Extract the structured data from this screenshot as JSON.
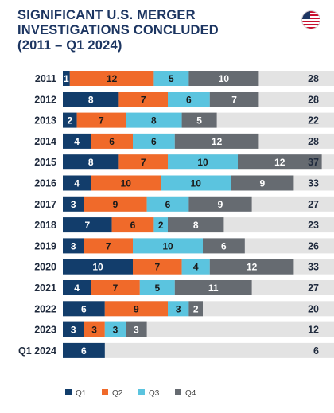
{
  "title_lines": [
    "SIGNIFICANT U.S. MERGER",
    "INVESTIGATIONS CONCLUDED",
    "(2011 – Q1 2024)"
  ],
  "flag_icon": "us-flag-icon",
  "colors": {
    "title": "#1c3561",
    "track": "#e3e3e3",
    "Q1": "#123d6b",
    "Q2": "#f06a2a",
    "Q3": "#5bc4df",
    "Q4": "#666b71"
  },
  "chart_data": {
    "type": "bar",
    "orientation": "horizontal",
    "stacked": true,
    "categories": [
      "2011",
      "2012",
      "2013",
      "2014",
      "2015",
      "2016",
      "2017",
      "2018",
      "2019",
      "2020",
      "2021",
      "2022",
      "2023",
      "Q1 2024"
    ],
    "series": [
      {
        "name": "Q1",
        "values": [
          1,
          8,
          2,
          4,
          8,
          4,
          3,
          7,
          3,
          10,
          4,
          6,
          3,
          6
        ]
      },
      {
        "name": "Q2",
        "values": [
          12,
          7,
          7,
          6,
          7,
          10,
          9,
          6,
          7,
          7,
          7,
          9,
          3,
          null
        ]
      },
      {
        "name": "Q3",
        "values": [
          5,
          6,
          8,
          6,
          10,
          10,
          6,
          2,
          10,
          4,
          5,
          3,
          3,
          null
        ]
      },
      {
        "name": "Q4",
        "values": [
          10,
          7,
          5,
          12,
          12,
          9,
          9,
          8,
          6,
          12,
          11,
          2,
          3,
          null
        ]
      }
    ],
    "totals": [
      28,
      28,
      22,
      28,
      37,
      33,
      27,
      23,
      26,
      33,
      27,
      20,
      12,
      6
    ],
    "xlim": [
      0,
      40
    ],
    "legend": "bottom-left",
    "grid": false
  }
}
